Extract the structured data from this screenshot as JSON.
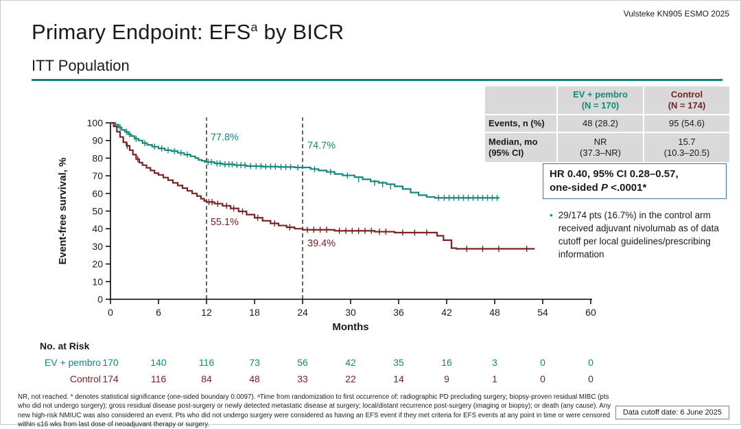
{
  "meta": {
    "attribution": "Vulsteke KN905 ESMO 2025",
    "data_cutoff": "Data cutoff date: 6 June 2025"
  },
  "header": {
    "title_pre": "Primary Endpoint: EFS",
    "title_sup": "a",
    "title_post": " by BICR",
    "subtitle": "ITT Population"
  },
  "colors": {
    "ev_pembro": "#11897b",
    "control": "#7b2125",
    "accent_rule": "#0f8577",
    "hr_box_border": "#41719c"
  },
  "summary_table": {
    "col_headers": [
      "EV + pembro\n(N = 170)",
      "Control\n(N = 174)"
    ],
    "rows": [
      {
        "label": "Events, n (%)",
        "values": [
          "48 (28.2)",
          "95 (54.6)"
        ]
      },
      {
        "label": "Median, mo\n(95% CI)",
        "values": [
          "NR\n(37.3–NR)",
          "15.7\n(10.3–20.5)"
        ]
      }
    ]
  },
  "hr_box": {
    "line1": "HR 0.40, 95% CI 0.28–0.57,",
    "line2_pre": "one-sided ",
    "line2_italic": "P",
    "line2_post": " <.0001*"
  },
  "bullet_note": "29/174 pts (16.7%) in the control arm received adjuvant nivolumab as of data cutoff per local guidelines/prescribing information",
  "chart_data": {
    "type": "line",
    "subtype": "kaplan-meier",
    "title": "",
    "xlabel": "Months",
    "ylabel": "Event-free survival, %",
    "xlim": [
      0,
      60
    ],
    "ylim": [
      0,
      100
    ],
    "xticks": [
      0,
      6,
      12,
      18,
      24,
      30,
      36,
      42,
      48,
      54,
      60
    ],
    "yticks": [
      0,
      10,
      20,
      30,
      40,
      50,
      60,
      70,
      80,
      90,
      100
    ],
    "reference_lines_x": [
      12,
      24
    ],
    "legend_position": "none",
    "grid": false,
    "series": [
      {
        "name": "EV + pembro",
        "color": "#11897b",
        "step": true,
        "points": [
          [
            0,
            100
          ],
          [
            0.6,
            99
          ],
          [
            1,
            97.5
          ],
          [
            1.4,
            96
          ],
          [
            1.8,
            95
          ],
          [
            2.2,
            93.5
          ],
          [
            2.6,
            92.5
          ],
          [
            3,
            91
          ],
          [
            3.5,
            90
          ],
          [
            4,
            88.5
          ],
          [
            4.6,
            87.5
          ],
          [
            5.2,
            86.5
          ],
          [
            6,
            85.5
          ],
          [
            6.8,
            84.5
          ],
          [
            7.6,
            84
          ],
          [
            8.4,
            83
          ],
          [
            9.2,
            82
          ],
          [
            10,
            81
          ],
          [
            10.6,
            80
          ],
          [
            11,
            79
          ],
          [
            11.4,
            78.5
          ],
          [
            11.8,
            77.8
          ],
          [
            13,
            77
          ],
          [
            14,
            76.5
          ],
          [
            15.5,
            76
          ],
          [
            17,
            75.5
          ],
          [
            19,
            75.2
          ],
          [
            21,
            75
          ],
          [
            23,
            74.7
          ],
          [
            25,
            73.8
          ],
          [
            26,
            73
          ],
          [
            27,
            72.2
          ],
          [
            28,
            71
          ],
          [
            29,
            70.2
          ],
          [
            30.5,
            69.2
          ],
          [
            31.5,
            68
          ],
          [
            32.5,
            66.8
          ],
          [
            33.5,
            66
          ],
          [
            34.5,
            65.2
          ],
          [
            35.5,
            64
          ],
          [
            36.5,
            62.5
          ],
          [
            37.5,
            60.5
          ],
          [
            38.5,
            59
          ],
          [
            39.5,
            58
          ],
          [
            40.5,
            57.5
          ],
          [
            48.6,
            57.5
          ]
        ],
        "censors": [
          [
            1.2,
            97.5
          ],
          [
            2,
            95
          ],
          [
            2.4,
            93.5
          ],
          [
            3.2,
            91
          ],
          [
            4.3,
            88.5
          ],
          [
            5.5,
            86.5
          ],
          [
            6.4,
            85.5
          ],
          [
            7.2,
            84.5
          ],
          [
            8,
            84
          ],
          [
            8.8,
            83
          ],
          [
            9.6,
            82
          ],
          [
            12.2,
            77.8
          ],
          [
            12.6,
            77.8
          ],
          [
            13.3,
            77
          ],
          [
            13.7,
            77
          ],
          [
            14.3,
            76.5
          ],
          [
            14.8,
            76.5
          ],
          [
            15.2,
            76.5
          ],
          [
            15.8,
            76
          ],
          [
            16.3,
            76
          ],
          [
            16.8,
            76
          ],
          [
            17.5,
            75.5
          ],
          [
            18.2,
            75.5
          ],
          [
            18.8,
            75.5
          ],
          [
            19.4,
            75.2
          ],
          [
            20,
            75.2
          ],
          [
            20.6,
            75.2
          ],
          [
            21.3,
            75
          ],
          [
            21.9,
            75
          ],
          [
            22.5,
            75
          ],
          [
            23.4,
            74.7
          ],
          [
            25.5,
            73.8
          ],
          [
            27.5,
            72.2
          ],
          [
            29.6,
            70.2
          ],
          [
            31,
            68
          ],
          [
            33,
            66
          ],
          [
            34,
            65.2
          ],
          [
            35,
            64
          ],
          [
            41,
            57.5
          ],
          [
            41.7,
            57.5
          ],
          [
            42.3,
            57.5
          ],
          [
            42.9,
            57.5
          ],
          [
            43.5,
            57.5
          ],
          [
            44.1,
            57.5
          ],
          [
            44.7,
            57.5
          ],
          [
            45.3,
            57.5
          ],
          [
            45.9,
            57.5
          ],
          [
            46.5,
            57.5
          ],
          [
            47.1,
            57.5
          ],
          [
            47.7,
            57.5
          ],
          [
            48.3,
            57.5
          ]
        ],
        "annotations": [
          {
            "x": 12.5,
            "y": 90,
            "label": "77.8%"
          },
          {
            "x": 24.6,
            "y": 85.5,
            "label": "74.7%"
          }
        ]
      },
      {
        "name": "Control",
        "color": "#7b2125",
        "step": true,
        "points": [
          [
            0,
            100
          ],
          [
            0.4,
            98
          ],
          [
            0.8,
            95
          ],
          [
            1.2,
            92
          ],
          [
            1.6,
            89
          ],
          [
            2,
            87
          ],
          [
            2.4,
            84.5
          ],
          [
            2.8,
            82
          ],
          [
            3.2,
            79.5
          ],
          [
            3.6,
            77.5
          ],
          [
            4,
            76
          ],
          [
            4.5,
            74.5
          ],
          [
            5,
            73
          ],
          [
            5.5,
            71.5
          ],
          [
            6,
            70.5
          ],
          [
            6.6,
            69
          ],
          [
            7.2,
            67.5
          ],
          [
            7.8,
            66
          ],
          [
            8.4,
            64.5
          ],
          [
            9,
            63
          ],
          [
            9.6,
            61.5
          ],
          [
            10.2,
            60
          ],
          [
            10.8,
            58.5
          ],
          [
            11.3,
            57
          ],
          [
            11.7,
            55.8
          ],
          [
            12,
            55.1
          ],
          [
            13,
            54.2
          ],
          [
            14,
            53
          ],
          [
            15,
            51.5
          ],
          [
            16,
            49.8
          ],
          [
            17,
            48
          ],
          [
            18,
            46.2
          ],
          [
            19,
            44.5
          ],
          [
            20,
            43
          ],
          [
            21,
            41.8
          ],
          [
            22,
            40.8
          ],
          [
            23,
            40
          ],
          [
            24,
            39.4
          ],
          [
            28,
            38.8
          ],
          [
            33,
            38.3
          ],
          [
            35.5,
            37.8
          ],
          [
            40.8,
            36
          ],
          [
            41.6,
            33.5
          ],
          [
            42.6,
            29
          ],
          [
            43.2,
            28.6
          ],
          [
            53,
            28.6
          ]
        ],
        "censors": [
          [
            2.1,
            87
          ],
          [
            3.4,
            79.5
          ],
          [
            12.3,
            55.1
          ],
          [
            12.7,
            55.1
          ],
          [
            13.4,
            54.2
          ],
          [
            14.5,
            53
          ],
          [
            15.4,
            51.5
          ],
          [
            16.5,
            49.8
          ],
          [
            18.4,
            46.2
          ],
          [
            20.5,
            43
          ],
          [
            22.4,
            40.8
          ],
          [
            24.6,
            39.4
          ],
          [
            25.4,
            39.4
          ],
          [
            26.2,
            39.4
          ],
          [
            27,
            39.4
          ],
          [
            28.6,
            38.8
          ],
          [
            29.4,
            38.8
          ],
          [
            30.2,
            38.8
          ],
          [
            31,
            38.8
          ],
          [
            31.8,
            38.8
          ],
          [
            32.6,
            38.8
          ],
          [
            33.6,
            38.3
          ],
          [
            34.4,
            38.3
          ],
          [
            36.5,
            37.8
          ],
          [
            38,
            37.8
          ],
          [
            39.5,
            37.8
          ],
          [
            44.5,
            28.6
          ],
          [
            46.5,
            28.6
          ],
          [
            48.5,
            28.6
          ],
          [
            52,
            28.6
          ]
        ],
        "annotations": [
          {
            "x": 12.5,
            "y": 42,
            "label": "55.1%"
          },
          {
            "x": 24.6,
            "y": 30,
            "label": "39.4%"
          }
        ]
      }
    ]
  },
  "risk_table": {
    "title": "No. at Risk",
    "months": [
      0,
      6,
      12,
      18,
      24,
      30,
      36,
      42,
      48,
      54,
      60
    ],
    "rows": [
      {
        "label": "EV + pembro",
        "values": [
          170,
          140,
          116,
          73,
          56,
          42,
          35,
          16,
          3,
          0,
          0
        ]
      },
      {
        "label": "Control",
        "values": [
          174,
          116,
          84,
          48,
          33,
          22,
          14,
          9,
          1,
          0,
          0
        ]
      }
    ]
  },
  "footnote": "NR, not reached. * denotes statistical significance (one-sided boundary 0.0097). ᵃTime from randomization to first occurrence of: radiographic PD precluding surgery; biopsy-proven residual MIBC (pts who did not undergo surgery); gross residual disease post-surgery or newly detected metastatic disease at surgery; local/distant recurrence post-surgery (imaging or biopsy); or death (any cause). Any new high-risk NMIUC was also considered an event. Pts who did not undergo surgery were considered as having an EFS event if they met criteria for EFS events at any point in time or were censored within ≤16 wks from last dose of neoadjuvant therapy or surgery."
}
